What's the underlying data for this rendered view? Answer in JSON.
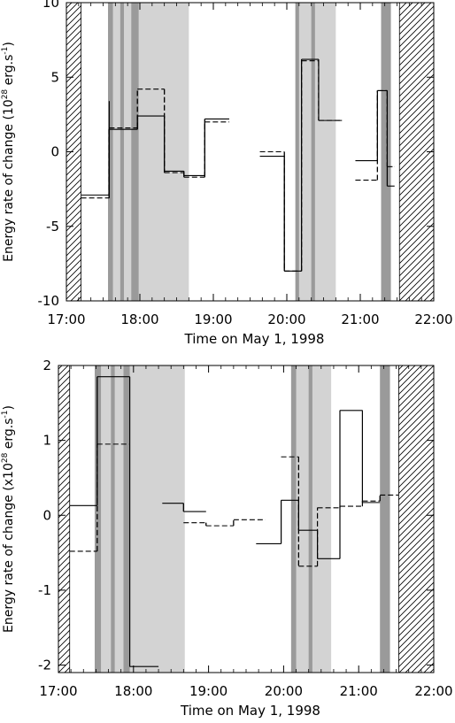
{
  "chart_data": [
    {
      "type": "line",
      "xlabel": "Time on May 1, 1998",
      "ylabel": "Energy rate of change (10",
      "ylabel_exp": "28",
      "ylabel_units": " erg.s",
      "ylabel_units_exp": "-1",
      "ylabel_close": ")",
      "xlim": [
        "17:00",
        "22:00"
      ],
      "ylim": [
        -10,
        10
      ],
      "x_ticks": [
        "17:00",
        "18:00",
        "19:00",
        "20:00",
        "21:00",
        "22:00"
      ],
      "y_ticks": [
        "-10",
        "-5",
        "0",
        "5",
        "10"
      ],
      "hatched_ranges": [
        [
          "17:00",
          "17:12"
        ],
        [
          "21:32",
          "22:00"
        ]
      ],
      "light_shaded_ranges": [
        [
          "17:34",
          "18:40"
        ],
        [
          "20:07",
          "20:40"
        ]
      ],
      "dark_bands": [
        [
          "17:34",
          "17:38"
        ],
        [
          "17:44",
          "17:47"
        ],
        [
          "17:53",
          "17:59"
        ],
        [
          "20:07",
          "20:10"
        ],
        [
          "20:20",
          "20:23"
        ],
        [
          "21:17",
          "21:25"
        ]
      ],
      "series": [
        {
          "style": "solid",
          "segments": [
            {
              "x": [
                "17:12",
                "17:35"
              ],
              "y": [
                -2.9,
                -2.9
              ]
            },
            {
              "x": [
                "17:35",
                "17:58"
              ],
              "y": [
                1.5,
                1.5
              ]
            },
            {
              "x": [
                "17:58",
                "18:20"
              ],
              "y": [
                2.4,
                2.4
              ]
            },
            {
              "x": [
                "18:20",
                "18:36"
              ],
              "y": [
                -1.3,
                -1.3
              ]
            },
            {
              "x": [
                "18:36",
                "18:53"
              ],
              "y": [
                -1.6,
                -1.6
              ]
            },
            {
              "x": [
                "18:53",
                "19:13"
              ],
              "y": [
                2.2,
                2.2
              ]
            },
            {
              "x": [
                "19:38",
                "19:58"
              ],
              "y": [
                -0.3,
                -0.3
              ]
            },
            {
              "x": [
                "19:58",
                "20:12"
              ],
              "y": [
                -8,
                -8
              ]
            },
            {
              "x": [
                "20:12",
                "20:26"
              ],
              "y": [
                6.2,
                6.2
              ]
            },
            {
              "x": [
                "20:26",
                "20:45"
              ],
              "y": [
                2.1,
                2.1
              ]
            },
            {
              "x": [
                "20:56",
                "21:14"
              ],
              "y": [
                -0.6,
                -0.6
              ]
            },
            {
              "x": [
                "21:14",
                "21:22"
              ],
              "y": [
                4.1,
                4.1
              ]
            },
            {
              "x": [
                "21:22",
                "21:28"
              ],
              "y": [
                -2.3,
                -2.3
              ]
            }
          ],
          "risers": [
            [
              "17:35",
              -2.9,
              3.4
            ]
          ]
        },
        {
          "style": "dashed",
          "segments": [
            {
              "x": [
                "17:12",
                "17:35"
              ],
              "y": [
                -3.1,
                -3.1
              ]
            },
            {
              "x": [
                "17:35",
                "17:58"
              ],
              "y": [
                1.6,
                1.6
              ]
            },
            {
              "x": [
                "17:58",
                "18:20"
              ],
              "y": [
                4.2,
                4.2
              ]
            },
            {
              "x": [
                "18:20",
                "18:36"
              ],
              "y": [
                -1.4,
                -1.4
              ]
            },
            {
              "x": [
                "18:36",
                "18:53"
              ],
              "y": [
                -1.7,
                -1.7
              ]
            },
            {
              "x": [
                "18:53",
                "19:13"
              ],
              "y": [
                2.0,
                2.0
              ]
            },
            {
              "x": [
                "19:38",
                "19:58"
              ],
              "y": [
                0.0,
                0.0
              ]
            },
            {
              "x": [
                "19:58",
                "20:12"
              ],
              "y": [
                -8,
                -8
              ]
            },
            {
              "x": [
                "20:12",
                "20:26"
              ],
              "y": [
                6.1,
                6.1
              ]
            },
            {
              "x": [
                "20:26",
                "20:45"
              ],
              "y": [
                2.1,
                2.1
              ]
            },
            {
              "x": [
                "20:56",
                "21:14"
              ],
              "y": [
                -1.9,
                -1.9
              ]
            },
            {
              "x": [
                "21:14",
                "21:22"
              ],
              "y": [
                4.1,
                4.1
              ]
            },
            {
              "x": [
                "21:22",
                "21:28"
              ],
              "y": [
                -1.0,
                -1.0
              ]
            }
          ],
          "risers": []
        }
      ]
    },
    {
      "type": "line",
      "xlabel": "Time on May 1, 1998",
      "ylabel": "Energy rate of change (x10",
      "ylabel_exp": "28",
      "ylabel_units": " erg.s",
      "ylabel_units_exp": "-1",
      "ylabel_close": ")",
      "xlim": [
        "17:00",
        "22:00"
      ],
      "ylim": [
        -2.1,
        2.0
      ],
      "x_ticks": [
        "17:00",
        "18:00",
        "19:00",
        "20:00",
        "21:00",
        "22:00"
      ],
      "y_ticks": [
        "-2",
        "-1",
        "0",
        "1",
        "2"
      ],
      "hatched_ranges": [
        [
          "17:00",
          "17:09"
        ],
        [
          "21:32",
          "22:00"
        ]
      ],
      "light_shaded_ranges": [
        [
          "17:29",
          "18:41"
        ],
        [
          "20:06",
          "20:38"
        ]
      ],
      "dark_bands": [
        [
          "17:29",
          "17:34"
        ],
        [
          "17:42",
          "17:45"
        ],
        [
          "17:52",
          "17:57"
        ],
        [
          "20:06",
          "20:10"
        ],
        [
          "20:20",
          "20:23"
        ],
        [
          "21:17",
          "21:25"
        ]
      ],
      "series": [
        {
          "style": "solid",
          "segments": [
            {
              "x": [
                "17:09",
                "17:31"
              ],
              "y": [
                0.13,
                0.13
              ]
            },
            {
              "x": [
                "17:31",
                "17:57"
              ],
              "y": [
                1.85,
                1.85
              ]
            },
            {
              "x": [
                "17:57",
                "18:20"
              ],
              "y": [
                -2.02,
                -2.02
              ]
            },
            {
              "x": [
                "18:23",
                "18:40"
              ],
              "y": [
                0.16,
                0.16
              ]
            },
            {
              "x": [
                "18:40",
                "18:58"
              ],
              "y": [
                0.05,
                0.05
              ]
            },
            {
              "x": [
                "19:38",
                "19:58"
              ],
              "y": [
                -0.38,
                -0.38
              ]
            },
            {
              "x": [
                "19:58",
                "20:12"
              ],
              "y": [
                0.2,
                0.2
              ]
            },
            {
              "x": [
                "20:12",
                "20:27"
              ],
              "y": [
                -0.2,
                -0.2
              ]
            },
            {
              "x": [
                "20:27",
                "20:45"
              ],
              "y": [
                -0.58,
                -0.58
              ]
            },
            {
              "x": [
                "20:45",
                "21:03"
              ],
              "y": [
                1.4,
                1.4
              ]
            },
            {
              "x": [
                "21:03",
                "21:17"
              ],
              "y": [
                0.17,
                0.17
              ]
            }
          ],
          "risers": []
        },
        {
          "style": "dashed",
          "segments": [
            {
              "x": [
                "17:09",
                "17:31"
              ],
              "y": [
                -0.48,
                -0.48
              ]
            },
            {
              "x": [
                "17:31",
                "17:57"
              ],
              "y": [
                0.95,
                0.95
              ]
            },
            {
              "x": [
                "18:40",
                "18:58"
              ],
              "y": [
                -0.1,
                -0.1
              ]
            },
            {
              "x": [
                "18:58",
                "19:20"
              ],
              "y": [
                -0.14,
                -0.14
              ]
            },
            {
              "x": [
                "19:20",
                "19:45"
              ],
              "y": [
                -0.06,
                -0.06
              ]
            },
            {
              "x": [
                "19:58",
                "20:12"
              ],
              "y": [
                0.78,
                0.78
              ]
            },
            {
              "x": [
                "20:12",
                "20:27"
              ],
              "y": [
                -0.68,
                -0.68
              ]
            },
            {
              "x": [
                "20:27",
                "20:45"
              ],
              "y": [
                0.1,
                0.1
              ]
            },
            {
              "x": [
                "20:45",
                "21:03"
              ],
              "y": [
                0.12,
                0.12
              ]
            },
            {
              "x": [
                "21:03",
                "21:17"
              ],
              "y": [
                0.19,
                0.19
              ]
            },
            {
              "x": [
                "21:17",
                "21:32"
              ],
              "y": [
                0.27,
                0.27
              ]
            }
          ],
          "risers": []
        }
      ]
    }
  ]
}
